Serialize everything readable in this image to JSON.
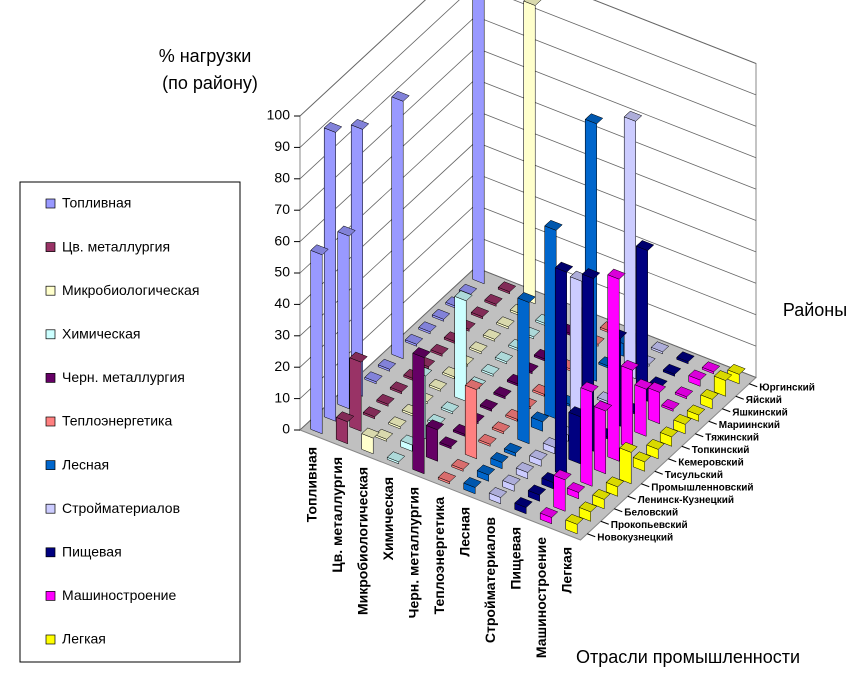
{
  "chart_data": {
    "type": "bar3d",
    "ylabel": [
      "% нагрузки",
      "(по району)"
    ],
    "xlabel": "Отрасли промышленности",
    "zlabel": "Районы",
    "categories": [
      "Новокузнецкий",
      "Прокопьевский",
      "Беловский",
      "Ленинск-Кузнецкий",
      "Промышленновский",
      "Тисульский",
      "Кемеровский",
      "Топкинский",
      "Тяжинский",
      "Мариинский",
      "Яшкинский",
      "Яйский",
      "Юргинский"
    ],
    "ylim": [
      0,
      100
    ],
    "yticks": [
      0,
      10,
      20,
      30,
      40,
      50,
      60,
      70,
      80,
      90,
      100
    ],
    "grid": true,
    "legend": "left",
    "series": [
      {
        "name": "Топливная",
        "color": "#9999ff",
        "values": [
          57,
          92,
          55,
          85,
          0,
          0,
          82,
          0,
          0,
          0,
          0,
          0,
          100
        ]
      },
      {
        "name": "Цв. металлургия",
        "color": "#993366",
        "values": [
          7,
          22,
          0,
          0,
          0,
          0,
          0,
          0,
          0,
          0,
          0,
          0,
          0
        ]
      },
      {
        "name": "Микробиологическая",
        "color": "#ffffcc",
        "values": [
          5,
          0,
          0,
          0,
          0,
          0,
          0,
          0,
          0,
          0,
          0,
          0,
          95
        ]
      },
      {
        "name": "Химическая",
        "color": "#ccffff",
        "values": [
          0,
          2,
          20,
          0,
          0,
          32,
          0,
          0,
          0,
          0,
          0,
          0,
          0
        ]
      },
      {
        "name": "Черн. металлургия",
        "color": "#660066",
        "values": [
          37,
          10,
          0,
          0,
          0,
          0,
          0,
          0,
          0,
          0,
          0,
          0,
          2
        ]
      },
      {
        "name": "Теплоэнергетика",
        "color": "#ff8080",
        "values": [
          0,
          0,
          22,
          0,
          0,
          0,
          0,
          0,
          0,
          0,
          0,
          0,
          0
        ]
      },
      {
        "name": "Лесная",
        "color": "#0066cc",
        "values": [
          2,
          2,
          2,
          1,
          45,
          3,
          60,
          0,
          0,
          82,
          0,
          4,
          0
        ]
      },
      {
        "name": "Стройматериалов",
        "color": "#ccccff",
        "values": [
          2,
          2,
          2,
          2,
          2,
          2,
          47,
          0,
          0,
          0,
          82,
          0,
          0
        ]
      },
      {
        "name": "Пищевая",
        "color": "#000080",
        "values": [
          2,
          2,
          2,
          65,
          15,
          55,
          0,
          28,
          0,
          48,
          0,
          0,
          0
        ]
      },
      {
        "name": "Машиностроение",
        "color": "#ff00ff",
        "values": [
          2,
          10,
          2,
          30,
          20,
          58,
          25,
          15,
          10,
          0,
          0,
          2,
          0
        ]
      },
      {
        "name": "Легкая",
        "color": "#ffff00",
        "values": [
          3,
          3,
          3,
          3,
          10,
          3,
          3,
          3,
          3,
          2,
          3,
          5,
          3
        ]
      }
    ]
  }
}
